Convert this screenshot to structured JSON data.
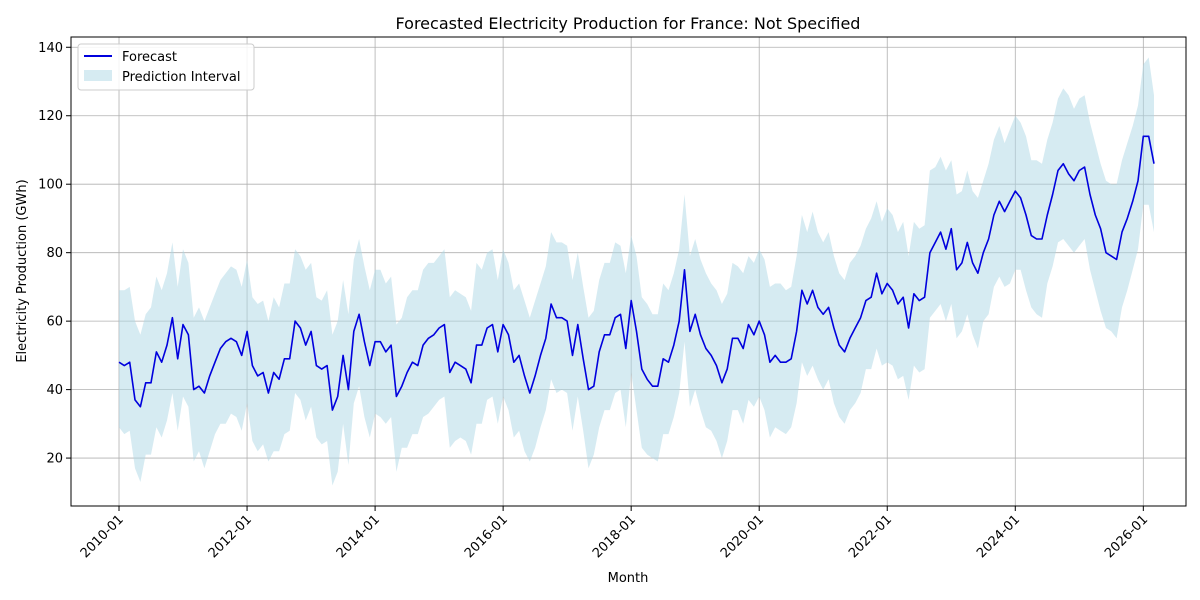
{
  "chart_data": {
    "type": "line",
    "title": "Forecasted Electricity Production for France: Not Specified",
    "xlabel": "Month",
    "ylabel": "Electricity Production (GWh)",
    "x_start": "2010-01",
    "x_ticks": [
      "2010-01",
      "2012-01",
      "2014-01",
      "2016-01",
      "2018-01",
      "2020-01",
      "2022-01",
      "2024-01",
      "2026-01"
    ],
    "xlim": [
      "2009-04",
      "2026-09"
    ],
    "y_ticks": [
      20,
      40,
      60,
      80,
      100,
      120,
      140
    ],
    "ylim": [
      6,
      143
    ],
    "grid": true,
    "legend": "upper-left",
    "colors": {
      "line": "#0000dd",
      "band": "#add8e6"
    },
    "series": [
      {
        "name": "Forecast",
        "values": [
          48,
          47,
          48,
          37,
          35,
          42,
          42,
          51,
          48,
          53,
          61,
          49,
          59,
          56,
          40,
          41,
          39,
          44,
          48,
          52,
          54,
          55,
          54,
          50,
          57,
          47,
          44,
          45,
          39,
          45,
          43,
          49,
          49,
          60,
          58,
          53,
          57,
          47,
          46,
          47,
          34,
          38,
          50,
          40,
          57,
          62,
          54,
          47,
          54,
          54,
          51,
          53,
          38,
          41,
          45,
          48,
          47,
          53,
          55,
          56,
          58,
          59,
          45,
          48,
          47,
          46,
          42,
          53,
          53,
          58,
          59,
          51,
          59,
          56,
          48,
          50,
          44,
          39,
          44,
          50,
          55,
          65,
          61,
          61,
          60,
          50,
          59,
          49,
          40,
          41,
          51,
          56,
          56,
          61,
          62,
          52,
          66,
          57,
          46,
          43,
          41,
          41,
          49,
          48,
          53,
          60,
          75,
          57,
          62,
          56,
          52,
          50,
          47,
          42,
          46,
          55,
          55,
          52,
          59,
          56,
          60,
          56,
          48,
          50,
          48,
          48,
          49,
          57,
          69,
          65,
          69,
          64,
          62,
          64,
          58,
          53,
          51,
          55,
          58,
          61,
          66,
          67,
          74,
          68,
          71,
          69,
          65,
          67,
          58,
          68,
          66,
          67,
          80,
          83,
          86,
          81,
          87,
          75,
          77,
          83,
          77,
          74,
          80,
          84,
          91,
          95,
          92,
          95,
          98,
          96,
          91,
          85,
          84,
          84,
          91,
          97,
          104,
          106,
          103,
          101,
          104,
          105,
          97,
          91,
          87,
          80,
          79,
          78,
          86,
          90,
          95,
          101,
          114,
          114,
          106
        ]
      },
      {
        "name": "Prediction Interval",
        "lower": [
          29,
          27,
          28,
          17,
          13,
          21,
          21,
          29,
          26,
          31,
          39,
          28,
          38,
          35,
          19,
          22,
          17,
          22,
          27,
          30,
          30,
          33,
          32,
          28,
          36,
          25,
          22,
          24,
          19,
          22,
          22,
          27,
          28,
          39,
          37,
          31,
          35,
          26,
          24,
          25,
          12,
          16,
          30,
          18,
          36,
          41,
          32,
          26,
          33,
          32,
          30,
          32,
          16,
          23,
          23,
          27,
          27,
          32,
          33,
          35,
          37,
          38,
          23,
          25,
          26,
          25,
          21,
          30,
          30,
          37,
          38,
          30,
          38,
          34,
          26,
          28,
          22,
          19,
          23,
          29,
          34,
          43,
          39,
          40,
          39,
          28,
          38,
          28,
          17,
          21,
          29,
          34,
          34,
          39,
          40,
          29,
          45,
          34,
          23,
          21,
          20,
          19,
          27,
          27,
          32,
          39,
          54,
          35,
          40,
          34,
          29,
          28,
          25,
          20,
          25,
          34,
          34,
          30,
          37,
          35,
          38,
          34,
          26,
          29,
          28,
          27,
          29,
          36,
          48,
          44,
          47,
          43,
          40,
          43,
          36,
          32,
          30,
          34,
          36,
          39,
          46,
          46,
          52,
          47,
          48,
          47,
          43,
          44,
          37,
          47,
          45,
          46,
          61,
          63,
          65,
          60,
          65,
          55,
          57,
          62,
          56,
          52,
          60,
          62,
          70,
          73,
          70,
          71,
          75,
          75,
          69,
          64,
          62,
          61,
          71,
          76,
          83,
          84,
          82,
          80,
          82,
          84,
          75,
          69,
          63,
          58,
          57,
          55,
          64,
          69,
          75,
          81,
          94,
          94,
          86
        ],
        "upper": [
          69,
          69,
          70,
          60,
          56,
          62,
          64,
          73,
          69,
          74,
          83,
          70,
          81,
          77,
          61,
          64,
          60,
          64,
          68,
          72,
          74,
          76,
          75,
          70,
          78,
          67,
          65,
          66,
          60,
          67,
          64,
          71,
          71,
          81,
          79,
          75,
          77,
          67,
          66,
          69,
          56,
          60,
          72,
          62,
          78,
          84,
          76,
          69,
          75,
          75,
          71,
          73,
          59,
          61,
          67,
          69,
          69,
          75,
          77,
          77,
          79,
          81,
          67,
          69,
          68,
          67,
          63,
          77,
          75,
          80,
          81,
          72,
          81,
          77,
          69,
          71,
          66,
          61,
          66,
          71,
          76,
          86,
          83,
          83,
          82,
          72,
          80,
          70,
          61,
          63,
          72,
          77,
          77,
          83,
          82,
          74,
          85,
          79,
          67,
          65,
          62,
          62,
          71,
          69,
          74,
          81,
          97,
          79,
          84,
          78,
          74,
          71,
          69,
          65,
          68,
          77,
          76,
          74,
          79,
          77,
          81,
          78,
          70,
          71,
          71,
          69,
          70,
          79,
          91,
          86,
          92,
          86,
          83,
          86,
          79,
          74,
          72,
          77,
          79,
          82,
          87,
          90,
          95,
          89,
          93,
          91,
          86,
          89,
          79,
          89,
          87,
          88,
          104,
          105,
          108,
          104,
          107,
          97,
          98,
          104,
          98,
          96,
          101,
          106,
          113,
          117,
          112,
          116,
          120,
          118,
          114,
          107,
          107,
          106,
          113,
          118,
          125,
          128,
          126,
          122,
          125,
          126,
          118,
          112,
          106,
          101,
          100,
          100,
          107,
          112,
          117,
          123,
          135,
          137,
          126
        ]
      }
    ]
  }
}
